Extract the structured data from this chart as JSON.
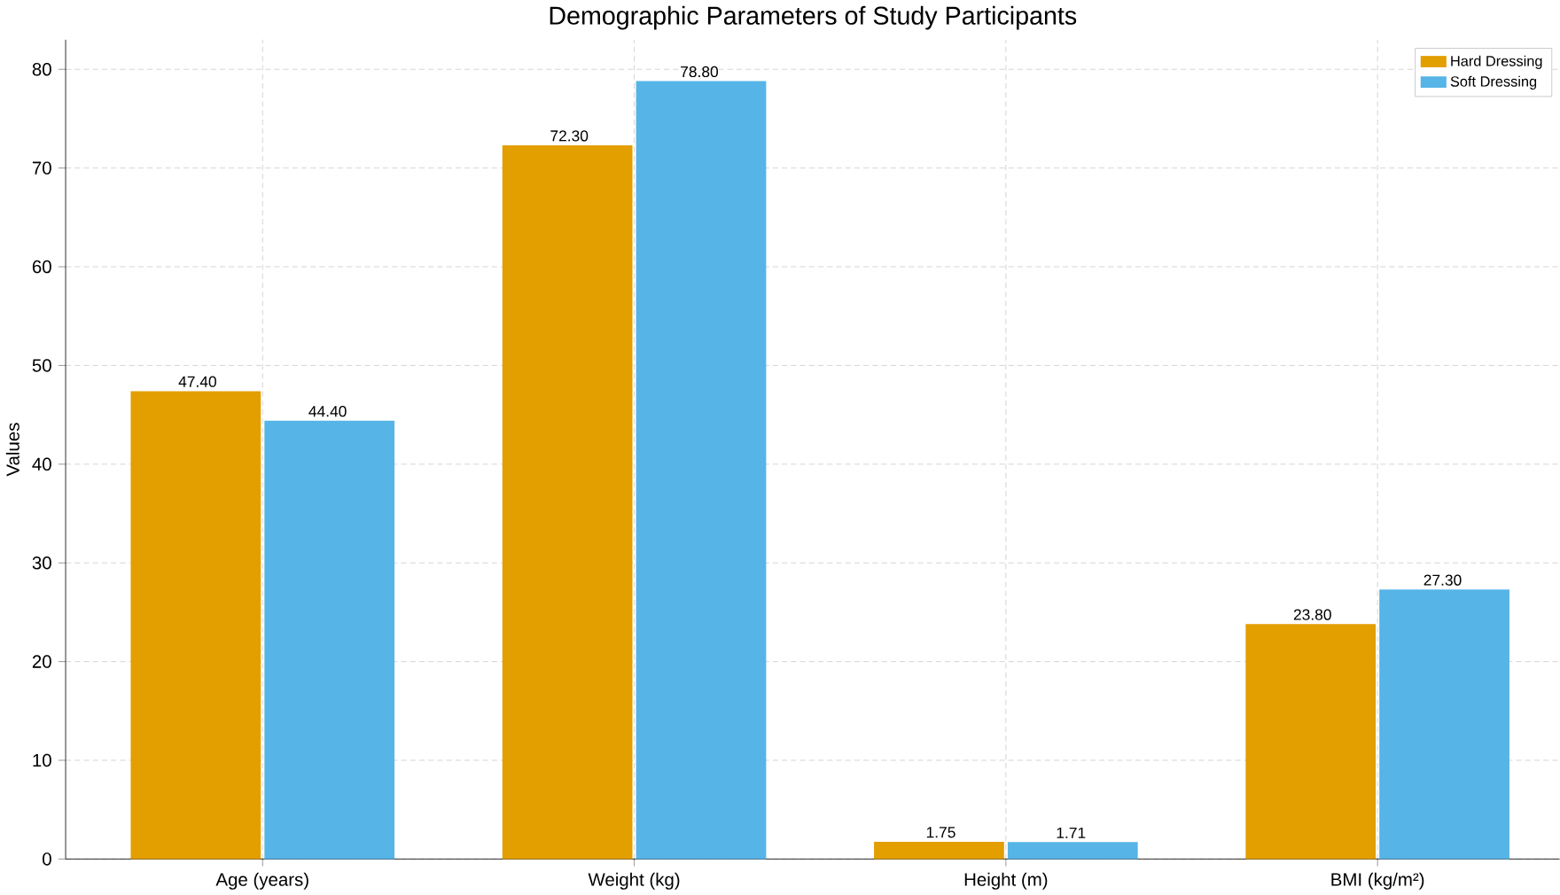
{
  "chart_data": {
    "type": "bar",
    "title": "Demographic Parameters of Study Participants",
    "ylabel": "Values",
    "categories": [
      "Age (years)",
      "Weight (kg)",
      "Height (m)",
      "BMI (kg/m²)"
    ],
    "series": [
      {
        "name": "Hard Dressing",
        "color": "#e39e00",
        "values": [
          47.4,
          72.3,
          1.75,
          23.8
        ],
        "value_labels": [
          "47.40",
          "72.30",
          "1.75",
          "23.80"
        ]
      },
      {
        "name": "Soft Dressing",
        "color": "#56b4e7",
        "values": [
          44.4,
          78.8,
          1.71,
          27.3
        ],
        "value_labels": [
          "44.40",
          "78.80",
          "1.71",
          "27.30"
        ]
      }
    ],
    "ylim": [
      0,
      83
    ],
    "yticks": [
      0,
      10,
      20,
      30,
      40,
      50,
      60,
      70,
      80
    ],
    "grid": true,
    "legend": "top right"
  }
}
